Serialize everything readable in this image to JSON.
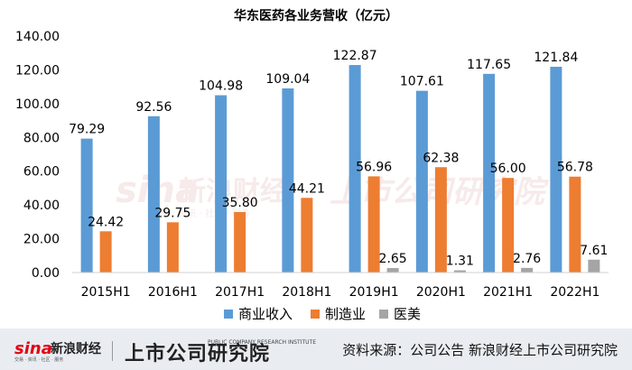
{
  "chart_data": {
    "type": "bar",
    "title": "华东医药各业务营收（亿元）",
    "categories": [
      "2015H1",
      "2016H1",
      "2017H1",
      "2018H1",
      "2019H1",
      "2020H1",
      "2021H1",
      "2022H1"
    ],
    "series": [
      {
        "name": "商业收入",
        "color": "#5b9bd5",
        "values": [
          79.29,
          92.56,
          104.98,
          109.04,
          122.87,
          107.61,
          117.65,
          121.84
        ]
      },
      {
        "name": "制造业",
        "color": "#ed7d31",
        "values": [
          24.42,
          29.75,
          35.8,
          44.21,
          56.96,
          62.38,
          56.0,
          56.78
        ]
      },
      {
        "name": "医美",
        "color": "#a5a5a5",
        "values": [
          null,
          null,
          null,
          null,
          2.65,
          1.31,
          2.76,
          7.61
        ]
      }
    ],
    "ylim": [
      0,
      140
    ],
    "yticks": [
      "0.00",
      "20.00",
      "40.00",
      "60.00",
      "80.00",
      "100.00",
      "120.00",
      "140.00"
    ],
    "legend_position": "bottom",
    "grid": false
  },
  "watermark": {
    "brand": "sina",
    "cn_name": "新浪财经",
    "sub_text": "交易 · 资讯 · 社区 · 服务",
    "institute": "上市公司研究院"
  },
  "footer": {
    "logo_brand": "sina",
    "logo_cn": "新浪财经",
    "logo_sub": "交易 · 资讯 · 社区 · 服务",
    "institute": "上市公司研究院",
    "institute_en": "PUBLIC COMPANY RESEARCH INSTITUTE",
    "source": "资料来源：公司公告 新浪财经上市公司研究院"
  },
  "colors": {
    "footer_bg": "#e9edf2",
    "watermark": "#f1d9da"
  }
}
